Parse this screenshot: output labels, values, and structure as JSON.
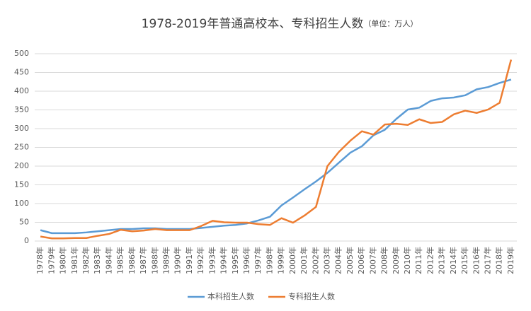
{
  "chart_data": {
    "type": "line",
    "title": "1978-2019年普通高校本、专科招生人数",
    "subtitle": "（单位：万人）",
    "categories": [
      "1978年",
      "1979年",
      "1980年",
      "1981年",
      "1982年",
      "1983年",
      "1984年",
      "1985年",
      "1986年",
      "1987年",
      "1988年",
      "1989年",
      "1990年",
      "1991年",
      "1992年",
      "1993年",
      "1994年",
      "1995年",
      "1996年",
      "1997年",
      "1998年",
      "1999年",
      "2000年",
      "2001年",
      "2002年",
      "2003年",
      "2004年",
      "2005年",
      "2006年",
      "2007年",
      "2008年",
      "2009年",
      "2010年",
      "2011年",
      "2012年",
      "2013年",
      "2014年",
      "2015年",
      "2016年",
      "2017年",
      "2018年",
      "2019年"
    ],
    "series": [
      {
        "name": "本科招生人数",
        "color": "#5b9bd5",
        "values": [
          29,
          21,
          21,
          21,
          23,
          26,
          29,
          32,
          32,
          34,
          34,
          32,
          32,
          32,
          35,
          38,
          41,
          43,
          47,
          55,
          65,
          95,
          116,
          138,
          159,
          182,
          209,
          236,
          253,
          282,
          297,
          326,
          351,
          356,
          374,
          381,
          383,
          389,
          405,
          411,
          422,
          431
        ]
      },
      {
        "name": "专科招生人数",
        "color": "#ed7d31",
        "values": [
          12,
          7,
          7,
          8,
          8,
          14,
          19,
          30,
          26,
          28,
          32,
          29,
          29,
          29,
          40,
          54,
          50,
          49,
          49,
          45,
          43,
          61,
          49,
          68,
          91,
          200,
          238,
          268,
          293,
          284,
          311,
          313,
          310,
          325,
          315,
          318,
          338,
          348,
          342,
          351,
          369,
          484
        ]
      }
    ],
    "ylim": [
      0,
      500
    ],
    "yticks": [
      0,
      50,
      100,
      150,
      200,
      250,
      300,
      350,
      400,
      450,
      500
    ],
    "grid": true
  }
}
